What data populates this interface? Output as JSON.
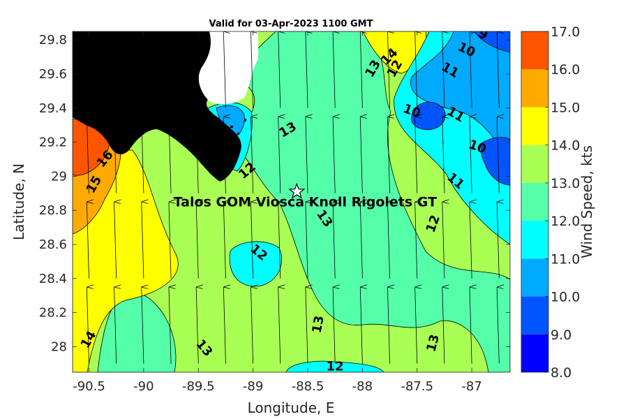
{
  "title": "Valid for 03-Apr-2023 1100 GMT",
  "xlabel": "Longitude, E",
  "ylabel": "Latitude, N",
  "x_ticks": [
    "-90.5",
    "-90",
    "-89.5",
    "-89",
    "-88.5",
    "-88",
    "-87.5",
    "-87"
  ],
  "y_ticks": [
    "29.8",
    "29.6",
    "29.4",
    "29.2",
    "29",
    "28.8",
    "28.6",
    "28.4",
    "28.2",
    "28"
  ],
  "extent": {
    "lon": [
      -90.65,
      -86.65
    ],
    "lat": [
      27.85,
      29.85
    ]
  },
  "station": {
    "name": "Talos GOM Viosca Knoll Rigolets GT",
    "lon": -88.6,
    "lat": 28.91,
    "marker": "star-icon"
  },
  "colorbar": {
    "label": "Wind Speed, kts",
    "ticks": [
      "8.0",
      "9.0",
      "10.0",
      "11.0",
      "12.0",
      "13.0",
      "14.0",
      "15.0",
      "16.0",
      "17.0"
    ],
    "colors": [
      "#0000ff",
      "#0055ff",
      "#00aaff",
      "#00ffff",
      "#55ffaa",
      "#aaff55",
      "#ffff00",
      "#ffaa00",
      "#ff5500"
    ]
  },
  "contour_labels": [
    {
      "text": "9",
      "lon": -86.9,
      "lat": 29.83,
      "rot": 30
    },
    {
      "text": "10",
      "lon": -87.05,
      "lat": 29.74,
      "rot": 25
    },
    {
      "text": "11",
      "lon": -87.2,
      "lat": 29.62,
      "rot": 30
    },
    {
      "text": "14",
      "lon": -87.75,
      "lat": 29.7,
      "rot": -45
    },
    {
      "text": "13",
      "lon": -87.9,
      "lat": 29.63,
      "rot": -60
    },
    {
      "text": "12",
      "lon": -87.7,
      "lat": 29.63,
      "rot": -60
    },
    {
      "text": "10",
      "lon": -87.55,
      "lat": 29.38,
      "rot": 20
    },
    {
      "text": "11",
      "lon": -87.15,
      "lat": 29.36,
      "rot": 30
    },
    {
      "text": "10",
      "lon": -86.95,
      "lat": 29.17,
      "rot": 20
    },
    {
      "text": "11",
      "lon": -87.15,
      "lat": 28.97,
      "rot": 40
    },
    {
      "text": "13",
      "lon": -88.68,
      "lat": 29.27,
      "rot": -30
    },
    {
      "text": "12",
      "lon": -89.05,
      "lat": 29.03,
      "rot": -40
    },
    {
      "text": "16",
      "lon": -90.35,
      "lat": 29.1,
      "rot": -50
    },
    {
      "text": "15",
      "lon": -90.45,
      "lat": 28.95,
      "rot": -60
    },
    {
      "text": "13",
      "lon": -88.35,
      "lat": 28.75,
      "rot": 55
    },
    {
      "text": "12",
      "lon": -87.35,
      "lat": 28.72,
      "rot": -70
    },
    {
      "text": "12",
      "lon": -88.95,
      "lat": 28.55,
      "rot": 40
    },
    {
      "text": "13",
      "lon": -88.4,
      "lat": 28.13,
      "rot": -80
    },
    {
      "text": "13",
      "lon": -87.35,
      "lat": 28.02,
      "rot": -75
    },
    {
      "text": "14",
      "lon": -90.5,
      "lat": 28.04,
      "rot": -60
    },
    {
      "text": "13",
      "lon": -89.45,
      "lat": 27.99,
      "rot": 50
    },
    {
      "text": "12",
      "lon": -88.25,
      "lat": 27.88,
      "rot": 0
    }
  ]
}
